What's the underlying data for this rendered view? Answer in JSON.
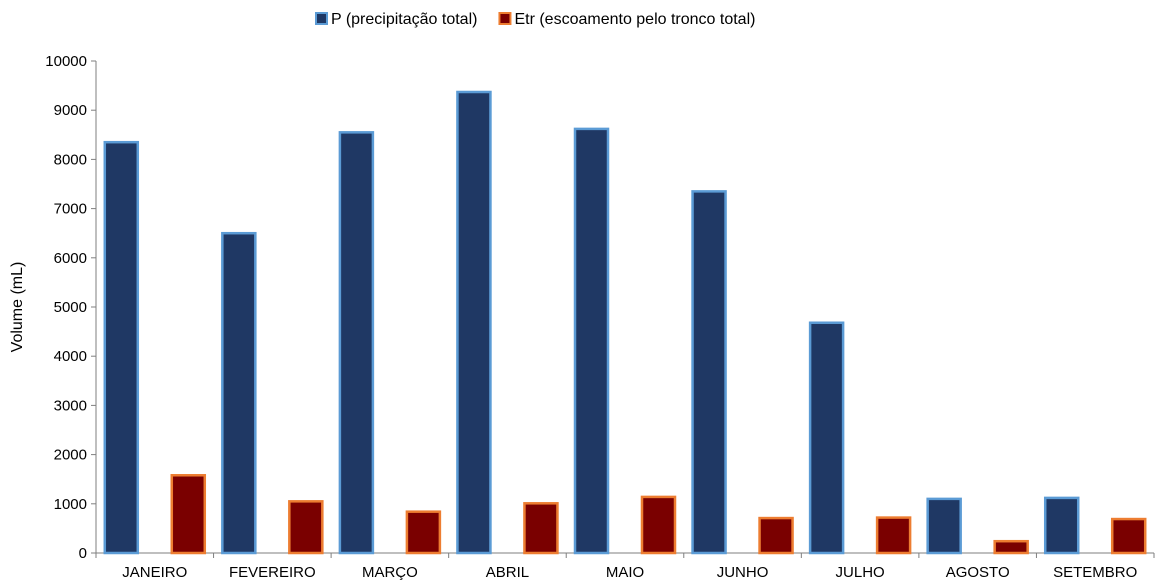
{
  "chart_data": {
    "type": "bar",
    "title": "",
    "xlabel": "",
    "ylabel": "Volume (mL)",
    "ylim": [
      0,
      10000
    ],
    "yticks": [
      0,
      1000,
      2000,
      3000,
      4000,
      5000,
      6000,
      7000,
      8000,
      9000,
      10000
    ],
    "grid": false,
    "legend_position": "top-center",
    "categories": [
      "JANEIRO",
      "FEVEREIRO",
      "MARÇO",
      "ABRIL",
      "MAIO",
      "JUNHO",
      "JULHO",
      "AGOSTO",
      "SETEMBRO"
    ],
    "series": [
      {
        "name": "P (precipitação total)",
        "fill": "#1f3864",
        "stroke": "#5b9bd5",
        "values": [
          8350,
          6500,
          8550,
          9370,
          8620,
          7350,
          4680,
          1100,
          1120
        ]
      },
      {
        "name": "Etr (escoamento pelo tronco total)",
        "fill": "#7a0000",
        "stroke": "#ed7d31",
        "values": [
          1580,
          1050,
          840,
          1010,
          1140,
          710,
          720,
          240,
          690
        ]
      }
    ]
  }
}
